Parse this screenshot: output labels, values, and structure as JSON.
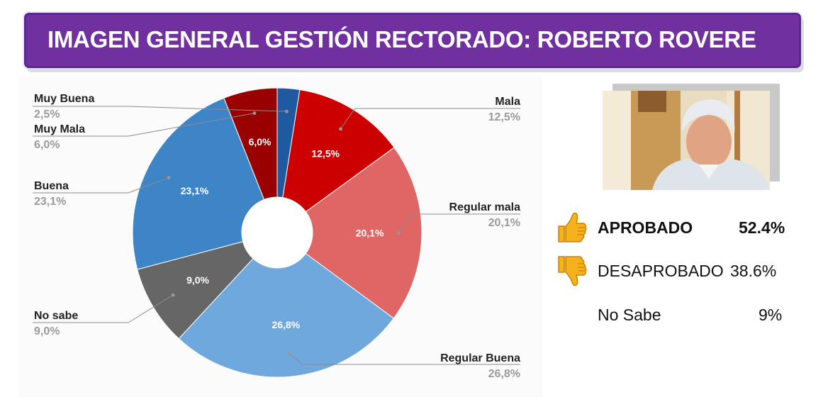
{
  "header": {
    "title": "IMAGEN GENERAL GESTIÓN RECTORADO: ROBERTO ROVERE"
  },
  "chart_data": {
    "type": "pie",
    "donut": true,
    "title": "",
    "slices": [
      {
        "label": "Muy Buena",
        "value": 2.5,
        "display": "2,5%",
        "color": "#1f5aa0"
      },
      {
        "label": "Mala",
        "value": 12.5,
        "display": "12,5%",
        "color": "#cc0000"
      },
      {
        "label": "Regular mala",
        "value": 20.1,
        "display": "20,1%",
        "color": "#e06666"
      },
      {
        "label": "Regular Buena",
        "value": 26.8,
        "display": "26,8%",
        "color": "#6fa8dc"
      },
      {
        "label": "No sabe",
        "value": 9.0,
        "display": "9,0%",
        "color": "#666666"
      },
      {
        "label": "Buena",
        "value": 23.1,
        "display": "23,1%",
        "color": "#3d85c6"
      },
      {
        "label": "Muy Mala",
        "value": 6.0,
        "display": "6,0%",
        "color": "#990000"
      }
    ]
  },
  "summary": [
    {
      "label": "APROBADO",
      "value": "52.4%",
      "icon": "thumbs-up-icon",
      "bold": true
    },
    {
      "label": "DESAPROBADO",
      "value": "38.6%",
      "icon": "thumbs-down-icon",
      "bold": false
    },
    {
      "label": "No Sabe",
      "value": "9%",
      "icon": "",
      "bold": false
    }
  ],
  "colors": {
    "banner": "#7030a0",
    "thumb": "#f6b11e",
    "leader": "#8c8c8c",
    "value_label": "#9a9a9a"
  }
}
